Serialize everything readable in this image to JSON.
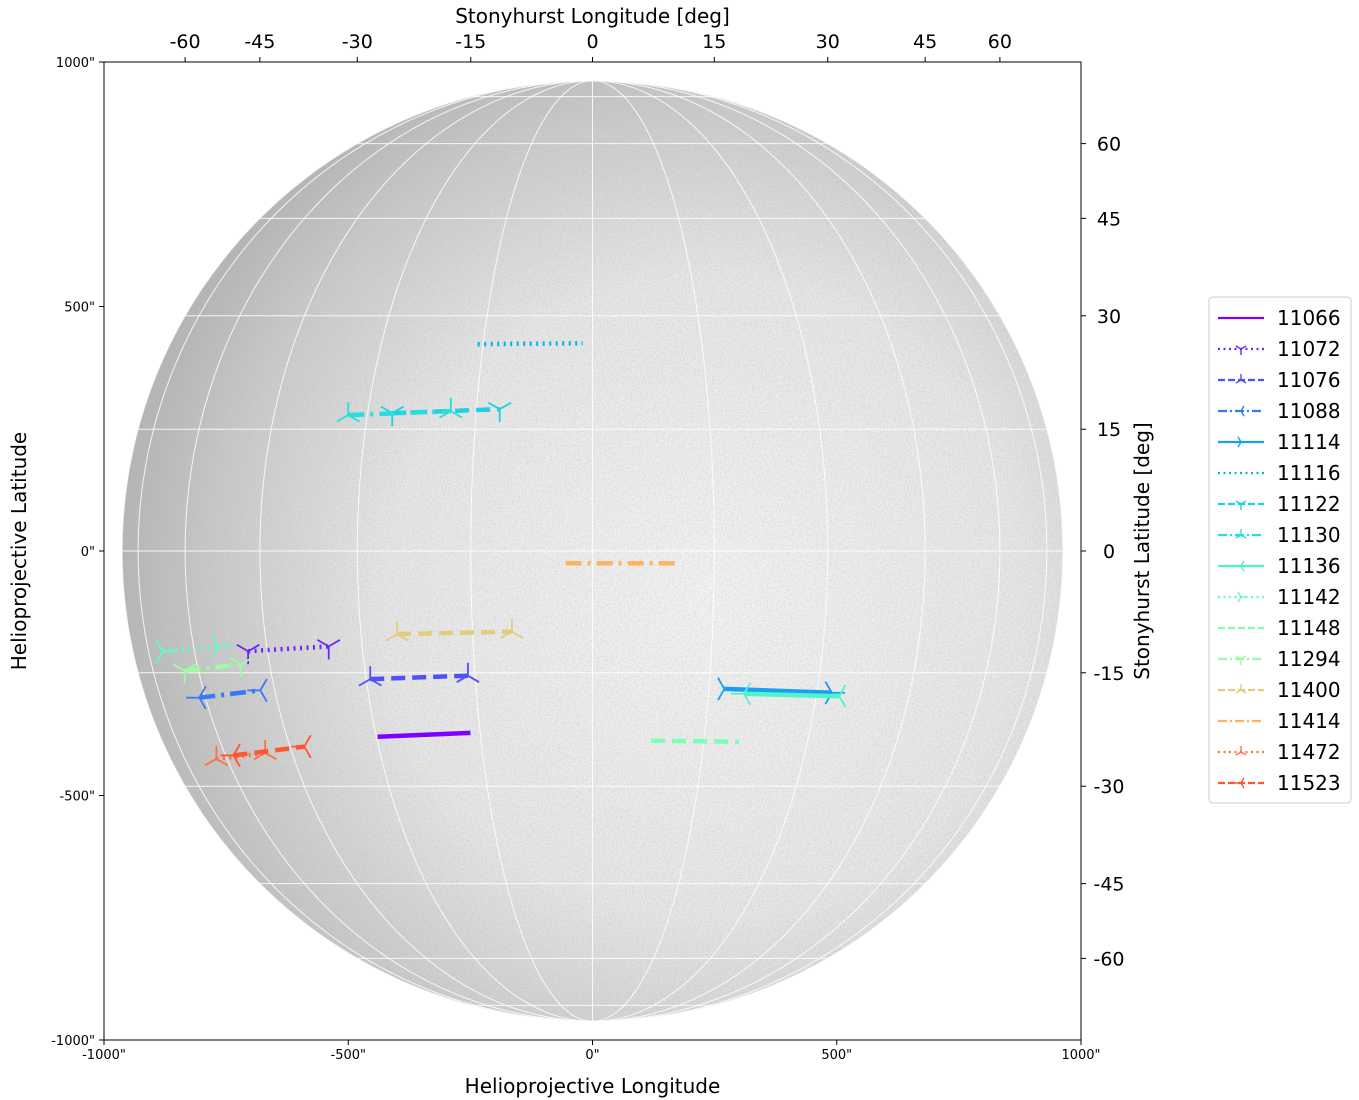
{
  "chart_data": {
    "type": "line",
    "xlabel": "Helioprojective Longitude",
    "ylabel": "Helioprojective Latitude",
    "top_label": "Stonyhurst Longitude [deg]",
    "right_label": "Stonyhurst Latitude [deg]",
    "xlim": [
      -1000,
      1000
    ],
    "ylim": [
      -1000,
      1000
    ],
    "x_ticks": [
      -1000,
      -500,
      0,
      500,
      1000
    ],
    "x_tick_labels": [
      "-1000\"",
      "-500\"",
      "0\"",
      "500\"",
      "1000\""
    ],
    "y_ticks": [
      1000,
      500,
      0,
      -500,
      -1000
    ],
    "y_tick_labels": [
      "1000\"",
      "500\"",
      "0\"",
      "-500\"",
      "-1000\""
    ],
    "top_ticks": [
      -60,
      -45,
      -30,
      -15,
      0,
      15,
      30,
      45,
      60
    ],
    "top_tick_labels": [
      "-60",
      "-45",
      "-30",
      "-15",
      "0",
      "15",
      "30",
      "45",
      "60"
    ],
    "right_ticks": [
      60,
      45,
      30,
      15,
      0,
      -15,
      -30,
      -45,
      -60
    ],
    "right_tick_labels": [
      "60",
      "45",
      "30",
      "15",
      "0",
      "-15",
      "-30",
      "-45",
      "-60"
    ],
    "solar_radius_arcsec": 963,
    "grid": true,
    "legend_position": "right",
    "series": [
      {
        "name": "11066",
        "color": "#8000ff",
        "style": "solid",
        "marker": "",
        "x": [
          -440,
          -250
        ],
        "y": [
          -380,
          -372
        ]
      },
      {
        "name": "11072",
        "color": "#6a24fe",
        "style": "dotted",
        "marker": "tri_down",
        "x": [
          -705,
          -540
        ],
        "y": [
          -205,
          -195
        ]
      },
      {
        "name": "11076",
        "color": "#4e50fc",
        "style": "dashed",
        "marker": "tri_up",
        "x": [
          -455,
          -255
        ],
        "y": [
          -262,
          -255
        ]
      },
      {
        "name": "11088",
        "color": "#3879f7",
        "style": "dashdot",
        "marker": "tri_left",
        "x": [
          -805,
          -680
        ],
        "y": [
          -300,
          -285
        ]
      },
      {
        "name": "11114",
        "color": "#1a9ff0",
        "style": "solid",
        "marker": "tri_right",
        "x": [
          270,
          490
        ],
        "y": [
          -282,
          -290
        ]
      },
      {
        "name": "11116",
        "color": "#00b5eb",
        "style": "dotted",
        "marker": "",
        "x": [
          -235,
          -20
        ],
        "y": [
          423,
          425
        ]
      },
      {
        "name": "11122",
        "color": "#1ed0e2",
        "style": "dashed",
        "marker": "tri_down",
        "x": [
          -410,
          -190
        ],
        "y": [
          282,
          290
        ]
      },
      {
        "name": "11130",
        "color": "#2adddd",
        "style": "dashdot",
        "marker": "tri_up",
        "x": [
          -500,
          -290
        ],
        "y": [
          278,
          286
        ]
      },
      {
        "name": "11136",
        "color": "#52f2cc",
        "style": "solid",
        "marker": "tri_left",
        "x": [
          310,
          505
        ],
        "y": [
          -292,
          -297
        ]
      },
      {
        "name": "11142",
        "color": "#66f9c3",
        "style": "dotted",
        "marker": "tri_right",
        "x": [
          -880,
          -765
        ],
        "y": [
          -205,
          -195
        ]
      },
      {
        "name": "11148",
        "color": "#7efeb6",
        "style": "dashed",
        "marker": "",
        "x": [
          120,
          300
        ],
        "y": [
          -388,
          -390
        ]
      },
      {
        "name": "11294",
        "color": "#9cfba4",
        "style": "dashdot",
        "marker": "tri_down",
        "x": [
          -835,
          -720
        ],
        "y": [
          -245,
          -232
        ]
      },
      {
        "name": "11400",
        "color": "#e2cd7c",
        "style": "dashed",
        "marker": "tri_up",
        "x": [
          -400,
          -165
        ],
        "y": [
          -170,
          -165
        ]
      },
      {
        "name": "11414",
        "color": "#ffb360",
        "style": "dashdot",
        "marker": "",
        "x": [
          -55,
          175
        ],
        "y": [
          -25,
          -25
        ]
      },
      {
        "name": "11472",
        "color": "#ff7040",
        "style": "dotted",
        "marker": "tri_up",
        "x": [
          -770,
          -670
        ],
        "y": [
          -425,
          -413
        ]
      },
      {
        "name": "11523",
        "color": "#ff5531",
        "style": "dashed",
        "marker": "tri_left",
        "x": [
          -735,
          -590
        ],
        "y": [
          -418,
          -400
        ]
      }
    ]
  }
}
